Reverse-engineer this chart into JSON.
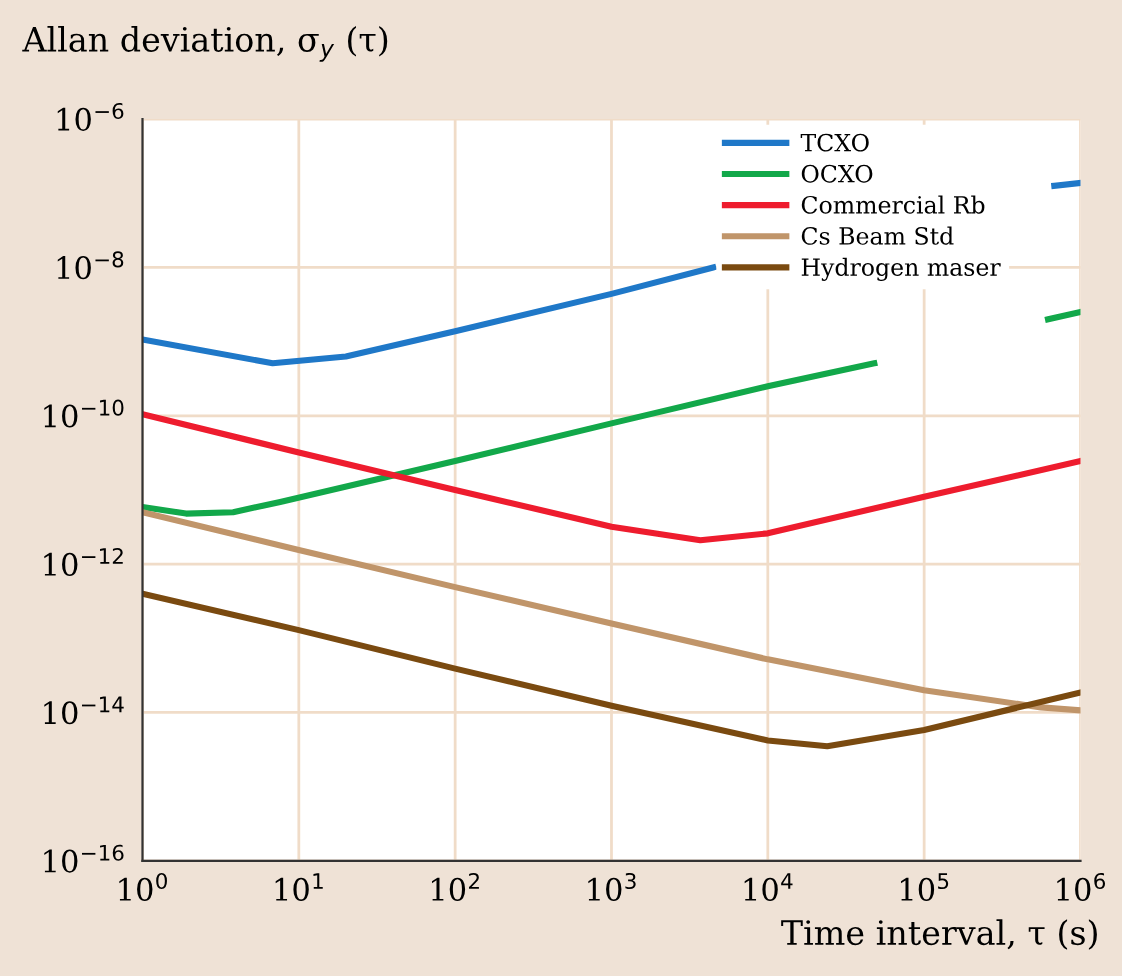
{
  "chart_data": {
    "type": "line",
    "xlabel": "Time interval, τ (s)",
    "ylabel": "Allan deviation, σ$_{y}$ (τ)",
    "log": "xy",
    "grid": true,
    "legend": "top right",
    "line_style": "solid",
    "marker": "none",
    "xlim": [
      1,
      1000000
    ],
    "ylim": [
      1e-16,
      1e-06
    ],
    "xticks": [
      {
        "value": 1,
        "label": "10$^{0}$"
      },
      {
        "value": 10,
        "label": "10$^{1}$"
      },
      {
        "value": 100,
        "label": "10$^{2}$"
      },
      {
        "value": 1000,
        "label": "10$^{3}$"
      },
      {
        "value": 10000,
        "label": "10$^{4}$"
      },
      {
        "value": 100000,
        "label": "10$^{5}$"
      },
      {
        "value": 1000000,
        "label": "10$^{6}$"
      }
    ],
    "yticks": [
      {
        "value": 1e-16,
        "label": "10$^{−16}$"
      },
      {
        "value": 1e-14,
        "label": "10$^{−14}$"
      },
      {
        "value": 1e-12,
        "label": "10$^{−12}$"
      },
      {
        "value": 1e-10,
        "label": "10$^{−10}$"
      },
      {
        "value": 1e-08,
        "label": "10$^{−8}$"
      },
      {
        "value": 1e-06,
        "label": "10$^{−6}$"
      }
    ],
    "series": [
      {
        "name": "TCXO",
        "color": "#1f78c8",
        "x": [
          1,
          6.8,
          20,
          100,
          1000,
          4470,
          100000,
          680000,
          1000000
        ],
        "values": [
          1.07e-09,
          5.1e-10,
          6.3e-10,
          1.38e-09,
          4.4e-09,
          1e-08,
          null,
          1.26e-07,
          1.38e-07
        ]
      },
      {
        "name": "OCXO",
        "color": "#12a84a",
        "x": [
          1,
          1.9,
          3.8,
          7.6,
          100,
          1000,
          10000,
          48000,
          100000,
          620000,
          1000000
        ],
        "values": [
          5.9e-12,
          4.8e-12,
          5e-12,
          6.9e-12,
          2.45e-11,
          7.9e-11,
          2.5e-10,
          5.1e-10,
          null,
          2e-09,
          2.5e-09
        ]
      },
      {
        "name": "Commercial Rb",
        "color": "#ee1c2e",
        "x": [
          1,
          10,
          100,
          1000,
          3700,
          10000,
          100000,
          1000000
        ],
        "values": [
          1.05e-10,
          3.2e-11,
          1e-11,
          3.2e-12,
          2.1e-12,
          2.6e-12,
          8.1e-12,
          2.45e-11
        ]
      },
      {
        "name": "Cs Beam Std",
        "color": "#c0956a",
        "x": [
          1,
          10,
          100,
          1000,
          10000,
          100000,
          560000,
          1000000
        ],
        "values": [
          5e-12,
          1.55e-12,
          4.9e-13,
          1.58e-13,
          5.2e-14,
          2e-14,
          1.17e-14,
          1.07e-14
        ]
      },
      {
        "name": "Hydrogen maser",
        "color": "#7a4a10",
        "x": [
          1,
          10,
          100,
          1000,
          10000,
          24000,
          100000,
          1000000
        ],
        "values": [
          4e-13,
          1.29e-13,
          3.9e-14,
          1.23e-14,
          4.2e-15,
          3.5e-15,
          5.8e-15,
          1.86e-14
        ]
      }
    ]
  }
}
